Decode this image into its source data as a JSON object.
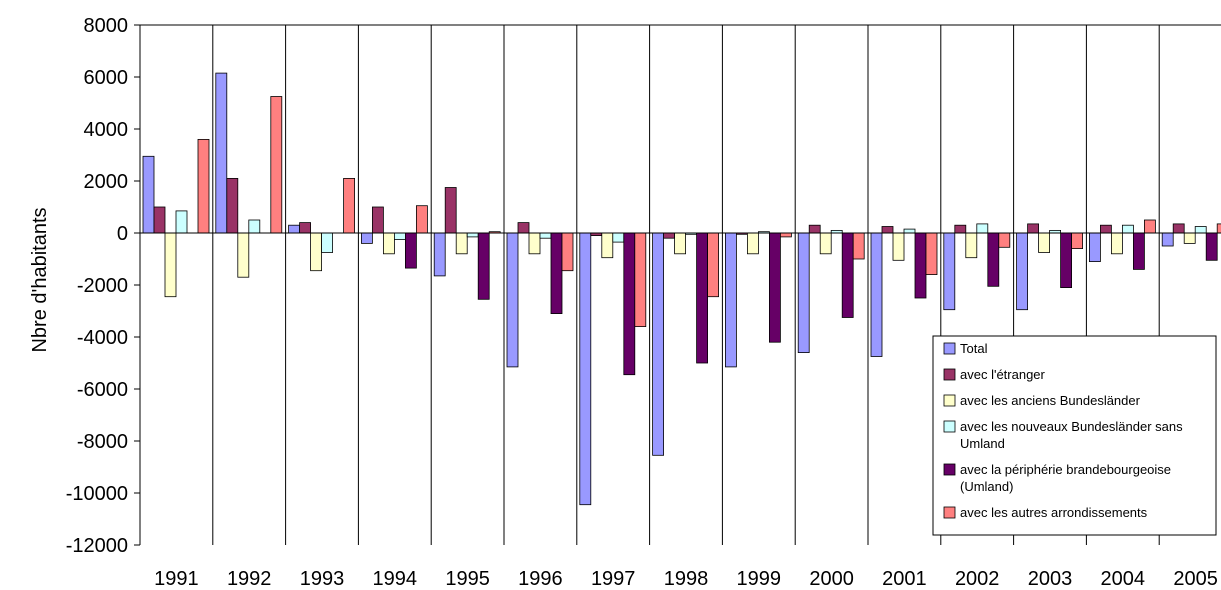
{
  "chart_data": {
    "type": "bar",
    "title": "",
    "xlabel": "",
    "ylabel": "Nbre d'habitants",
    "ylim": [
      -12000,
      8000
    ],
    "yticks": [
      8000,
      6000,
      4000,
      2000,
      0,
      -2000,
      -4000,
      -6000,
      -8000,
      -10000,
      -12000
    ],
    "grid": "vertical",
    "legend_position": "bottom-right",
    "categories": [
      "1991",
      "1992",
      "1993",
      "1994",
      "1995",
      "1996",
      "1997",
      "1998",
      "1999",
      "2000",
      "2001",
      "2002",
      "2003",
      "2004",
      "2005"
    ],
    "series": [
      {
        "name": "Total",
        "color": "#9999ff",
        "values": [
          2950,
          6150,
          300,
          -400,
          -1650,
          -5150,
          -10450,
          -8550,
          -5150,
          -4600,
          -4750,
          -2950,
          -2950,
          -1100,
          -500
        ]
      },
      {
        "name": "avec l'étranger",
        "color": "#993366",
        "values": [
          1000,
          2100,
          400,
          1000,
          1750,
          400,
          -100,
          -200,
          -50,
          300,
          250,
          300,
          350,
          300,
          350
        ]
      },
      {
        "name": "avec les anciens Bundesländer",
        "color": "#ffffcc",
        "values": [
          -2450,
          -1700,
          -1450,
          -800,
          -800,
          -800,
          -950,
          -800,
          -800,
          -800,
          -1050,
          -950,
          -750,
          -800,
          -400
        ]
      },
      {
        "name": "avec les nouveaux Bundesländer sans Umland",
        "color": "#ccffff",
        "values": [
          850,
          500,
          -750,
          -250,
          -150,
          -200,
          -350,
          -50,
          50,
          100,
          150,
          350,
          100,
          300,
          250
        ]
      },
      {
        "name": "avec la périphérie brandebourgeoise (Umland)",
        "color": "#660066",
        "values": [
          0,
          0,
          0,
          -1350,
          -2550,
          -3100,
          -5450,
          -5000,
          -4200,
          -3250,
          -2500,
          -2050,
          -2100,
          -1400,
          -1050
        ]
      },
      {
        "name": "avec les autres arrondissements",
        "color": "#ff8080",
        "values": [
          3600,
          5250,
          2100,
          1050,
          50,
          -1450,
          -3600,
          -2450,
          -150,
          -1000,
          -1600,
          -550,
          -600,
          500,
          350
        ]
      }
    ]
  }
}
